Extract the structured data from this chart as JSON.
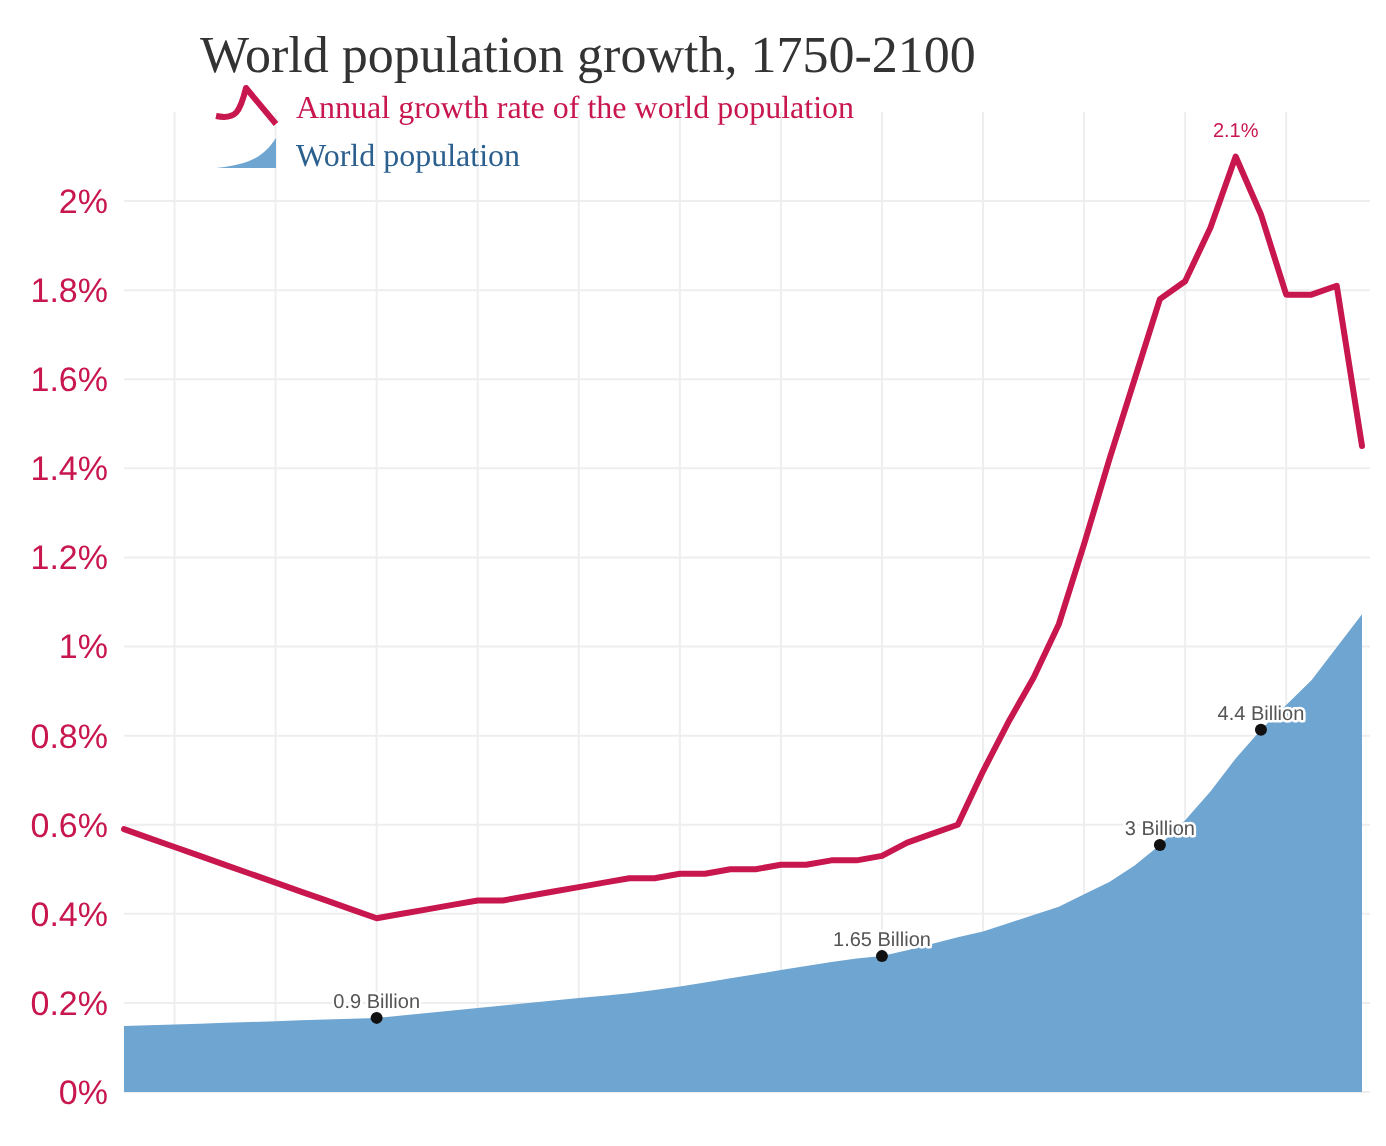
{
  "chart_data": {
    "type": "line",
    "title": "World population growth, 1750-2100",
    "categories": [
      null,
      null,
      null,
      null,
      null,
      null,
      null,
      null,
      null,
      null,
      null,
      null,
      null,
      null,
      null,
      null,
      null,
      null,
      null,
      null,
      null,
      null,
      null,
      null,
      null,
      null,
      null,
      null,
      null,
      null,
      null,
      null,
      null,
      null,
      null,
      null,
      null,
      null,
      null,
      null,
      null,
      null,
      null,
      null,
      null,
      null,
      null,
      null,
      null,
      null
    ],
    "series": [
      {
        "name": "World population",
        "type": "area",
        "axis": "y2",
        "color": "#6fa5d1",
        "values": [
          0.8,
          0.81,
          0.82,
          0.83,
          0.84,
          0.85,
          0.86,
          0.87,
          0.88,
          0.89,
          0.9,
          0.93,
          0.96,
          0.99,
          1.02,
          1.05,
          1.08,
          1.11,
          1.14,
          1.17,
          1.2,
          1.24,
          1.28,
          1.33,
          1.38,
          1.43,
          1.48,
          1.53,
          1.58,
          1.62,
          1.65,
          1.72,
          1.8,
          1.88,
          1.95,
          2.05,
          2.15,
          2.25,
          2.4,
          2.55,
          2.75,
          3.0,
          3.3,
          3.65,
          4.05,
          4.4,
          4.7,
          5.0,
          5.4,
          5.8
        ],
        "value_labels": [
          null,
          null,
          null,
          null,
          null,
          null,
          null,
          null,
          null,
          null,
          "0.9 Billion",
          null,
          null,
          null,
          null,
          null,
          null,
          null,
          null,
          null,
          null,
          null,
          null,
          null,
          null,
          null,
          null,
          null,
          null,
          null,
          "1.65 Billion",
          null,
          null,
          null,
          null,
          null,
          null,
          null,
          null,
          null,
          null,
          "3 Billion",
          null,
          null,
          null,
          "4.4 Billion",
          null,
          null,
          null,
          null
        ]
      },
      {
        "name": "Annual growth rate of the world population",
        "color": "#c8164f",
        "values": [
          0.59,
          0.57,
          0.55,
          0.53,
          0.51,
          0.49,
          0.47,
          0.45,
          0.43,
          0.41,
          0.39,
          0.4,
          0.41,
          0.42,
          0.43,
          0.43,
          0.44,
          0.45,
          0.46,
          0.47,
          0.48,
          0.48,
          0.49,
          0.49,
          0.5,
          0.5,
          0.51,
          0.51,
          0.52,
          0.52,
          0.53,
          0.56,
          0.58,
          0.6,
          0.72,
          0.83,
          0.93,
          1.05,
          1.23,
          1.42,
          1.6,
          1.78,
          1.82,
          1.94,
          2.1,
          1.97,
          1.79,
          1.79,
          1.81,
          1.45
        ],
        "value_labels": [
          null,
          null,
          null,
          null,
          null,
          null,
          null,
          null,
          null,
          null,
          null,
          null,
          null,
          null,
          null,
          null,
          null,
          null,
          null,
          null,
          null,
          null,
          null,
          null,
          null,
          null,
          null,
          null,
          null,
          null,
          null,
          null,
          null,
          null,
          null,
          null,
          null,
          null,
          null,
          null,
          null,
          null,
          null,
          null,
          "2.1%",
          null,
          null,
          null,
          null,
          null
        ]
      }
    ],
    "ylim": [
      0,
      2.2
    ],
    "yticks": [
      {
        "value": 0,
        "label": "0%"
      },
      {
        "value": 0.2,
        "label": "0.2%"
      },
      {
        "value": 0.4,
        "label": "0.4%"
      },
      {
        "value": 0.6,
        "label": "0.6%"
      },
      {
        "value": 0.8,
        "label": "0.8%"
      },
      {
        "value": 1,
        "label": "1%"
      },
      {
        "value": 1.2,
        "label": "1.2%"
      },
      {
        "value": 1.4,
        "label": "1.4%"
      },
      {
        "value": 1.6,
        "label": "1.6%"
      },
      {
        "value": 1.8,
        "label": "1.8%"
      },
      {
        "value": 2,
        "label": "2%"
      }
    ],
    "y2lim": [
      0,
      11.9
    ],
    "tick_labels": "y",
    "grid": true,
    "legend": "top left"
  }
}
